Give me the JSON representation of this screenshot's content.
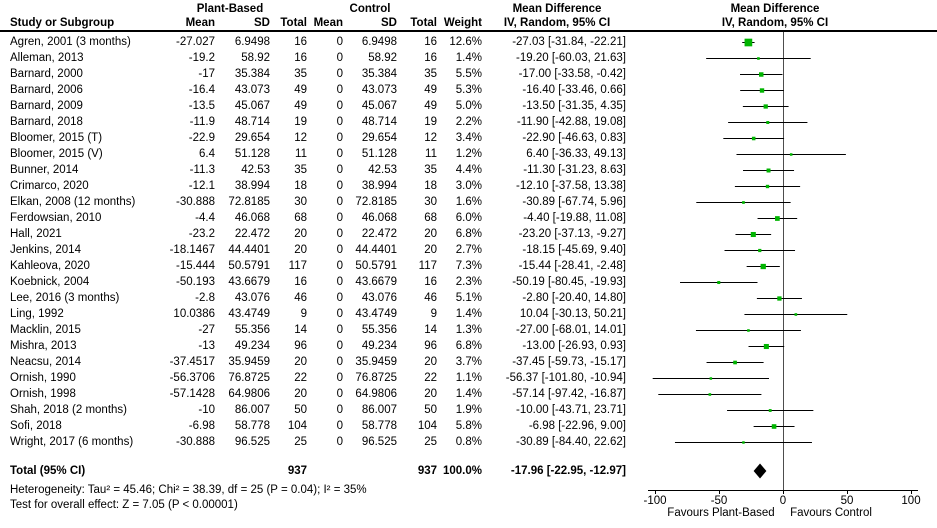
{
  "header": {
    "group_plant": "Plant-Based",
    "group_control": "Control",
    "effect_header_1": "Mean Difference",
    "effect_header_2": "Mean Difference",
    "col_study": "Study or Subgroup",
    "col_mean": "Mean",
    "col_sd": "SD",
    "col_total": "Total",
    "col_mean2": "Mean",
    "col_sd2": "SD",
    "col_total2": "Total",
    "col_weight": "Weight",
    "col_ci_text": "IV, Random, 95% CI",
    "col_ci_plot": "IV, Random, 95% CI"
  },
  "footer": {
    "heterogeneity": "Heterogeneity: Tau² = 45.46; Chi² = 38.39, df = 25 (P = 0.04); I² = 35%",
    "overall_effect": "Test for overall effect: Z = 7.05 (P < 0.00001)"
  },
  "colors": {
    "marker_green": "#00b400",
    "diamond_black": "#000000",
    "ci_line": "#000000",
    "zero_line": "#4d4d4d",
    "axis": "#000000",
    "text": "#000000"
  },
  "chart_data": {
    "type": "forest",
    "effect_measure": "Mean Difference",
    "method": "IV, Random, 95% CI",
    "xlim": [
      -105,
      105
    ],
    "ticks": [
      -100,
      -50,
      0,
      50,
      100
    ],
    "favours_left": "Favours Plant-Based",
    "favours_right": "Favours Control",
    "studies": [
      {
        "study": "Agren, 2001 (3 months)",
        "mean1": "-27.027",
        "sd1": "6.9498",
        "n1": "16",
        "mean2": "0",
        "sd2": "6.9498",
        "n2": "16",
        "weight": "12.6%",
        "w": 12.6,
        "md": -27.03,
        "lo": -31.84,
        "hi": -22.21,
        "ci_text": "-27.03 [-31.84, -22.21]"
      },
      {
        "study": "Alleman, 2013",
        "mean1": "-19.2",
        "sd1": "58.92",
        "n1": "16",
        "mean2": "0",
        "sd2": "58.92",
        "n2": "16",
        "weight": "1.4%",
        "w": 1.4,
        "md": -19.2,
        "lo": -60.03,
        "hi": 21.63,
        "ci_text": "-19.20 [-60.03, 21.63]"
      },
      {
        "study": "Barnard, 2000",
        "mean1": "-17",
        "sd1": "35.384",
        "n1": "35",
        "mean2": "0",
        "sd2": "35.384",
        "n2": "35",
        "weight": "5.5%",
        "w": 5.5,
        "md": -17.0,
        "lo": -33.58,
        "hi": -0.42,
        "ci_text": "-17.00 [-33.58, -0.42]"
      },
      {
        "study": "Barnard, 2006",
        "mean1": "-16.4",
        "sd1": "43.073",
        "n1": "49",
        "mean2": "0",
        "sd2": "43.073",
        "n2": "49",
        "weight": "5.3%",
        "w": 5.3,
        "md": -16.4,
        "lo": -33.46,
        "hi": 0.66,
        "ci_text": "-16.40 [-33.46, 0.66]"
      },
      {
        "study": "Barnard, 2009",
        "mean1": "-13.5",
        "sd1": "45.067",
        "n1": "49",
        "mean2": "0",
        "sd2": "45.067",
        "n2": "49",
        "weight": "5.0%",
        "w": 5.0,
        "md": -13.5,
        "lo": -31.35,
        "hi": 4.35,
        "ci_text": "-13.50 [-31.35, 4.35]"
      },
      {
        "study": "Barnard, 2018",
        "mean1": "-11.9",
        "sd1": "48.714",
        "n1": "19",
        "mean2": "0",
        "sd2": "48.714",
        "n2": "19",
        "weight": "2.2%",
        "w": 2.2,
        "md": -11.9,
        "lo": -42.88,
        "hi": 19.08,
        "ci_text": "-11.90 [-42.88, 19.08]"
      },
      {
        "study": "Bloomer, 2015 (T)",
        "mean1": "-22.9",
        "sd1": "29.654",
        "n1": "12",
        "mean2": "0",
        "sd2": "29.654",
        "n2": "12",
        "weight": "3.4%",
        "w": 3.4,
        "md": -22.9,
        "lo": -46.63,
        "hi": 0.83,
        "ci_text": "-22.90 [-46.63, 0.83]"
      },
      {
        "study": "Bloomer, 2015 (V)",
        "mean1": "6.4",
        "sd1": "51.128",
        "n1": "11",
        "mean2": "0",
        "sd2": "51.128",
        "n2": "11",
        "weight": "1.2%",
        "w": 1.2,
        "md": 6.4,
        "lo": -36.33,
        "hi": 49.13,
        "ci_text": "6.40 [-36.33, 49.13]"
      },
      {
        "study": "Bunner, 2014",
        "mean1": "-11.3",
        "sd1": "42.53",
        "n1": "35",
        "mean2": "0",
        "sd2": "42.53",
        "n2": "35",
        "weight": "4.4%",
        "w": 4.4,
        "md": -11.3,
        "lo": -31.23,
        "hi": 8.63,
        "ci_text": "-11.30 [-31.23, 8.63]"
      },
      {
        "study": "Crimarco, 2020",
        "mean1": "-12.1",
        "sd1": "38.994",
        "n1": "18",
        "mean2": "0",
        "sd2": "38.994",
        "n2": "18",
        "weight": "3.0%",
        "w": 3.0,
        "md": -12.1,
        "lo": -37.58,
        "hi": 13.38,
        "ci_text": "-12.10 [-37.58, 13.38]"
      },
      {
        "study": "Elkan, 2008 (12 months)",
        "mean1": "-30.888",
        "sd1": "72.8185",
        "n1": "30",
        "mean2": "0",
        "sd2": "72.8185",
        "n2": "30",
        "weight": "1.6%",
        "w": 1.6,
        "md": -30.89,
        "lo": -67.74,
        "hi": 5.96,
        "ci_text": "-30.89 [-67.74, 5.96]"
      },
      {
        "study": "Ferdowsian, 2010",
        "mean1": "-4.4",
        "sd1": "46.068",
        "n1": "68",
        "mean2": "0",
        "sd2": "46.068",
        "n2": "68",
        "weight": "6.0%",
        "w": 6.0,
        "md": -4.4,
        "lo": -19.88,
        "hi": 11.08,
        "ci_text": "-4.40 [-19.88, 11.08]"
      },
      {
        "study": "Hall, 2021",
        "mean1": "-23.2",
        "sd1": "22.472",
        "n1": "20",
        "mean2": "0",
        "sd2": "22.472",
        "n2": "20",
        "weight": "6.8%",
        "w": 6.8,
        "md": -23.2,
        "lo": -37.13,
        "hi": -9.27,
        "ci_text": "-23.20 [-37.13, -9.27]"
      },
      {
        "study": "Jenkins, 2014",
        "mean1": "-18.1467",
        "sd1": "44.4401",
        "n1": "20",
        "mean2": "0",
        "sd2": "44.4401",
        "n2": "20",
        "weight": "2.7%",
        "w": 2.7,
        "md": -18.15,
        "lo": -45.69,
        "hi": 9.4,
        "ci_text": "-18.15 [-45.69, 9.40]"
      },
      {
        "study": "Kahleova, 2020",
        "mean1": "-15.444",
        "sd1": "50.5791",
        "n1": "117",
        "mean2": "0",
        "sd2": "50.5791",
        "n2": "117",
        "weight": "7.3%",
        "w": 7.3,
        "md": -15.44,
        "lo": -28.41,
        "hi": -2.48,
        "ci_text": "-15.44 [-28.41, -2.48]"
      },
      {
        "study": "Koebnick, 2004",
        "mean1": "-50.193",
        "sd1": "43.6679",
        "n1": "16",
        "mean2": "0",
        "sd2": "43.6679",
        "n2": "16",
        "weight": "2.3%",
        "w": 2.3,
        "md": -50.19,
        "lo": -80.45,
        "hi": -19.93,
        "ci_text": "-50.19 [-80.45, -19.93]"
      },
      {
        "study": "Lee, 2016 (3 months)",
        "mean1": "-2.8",
        "sd1": "43.076",
        "n1": "46",
        "mean2": "0",
        "sd2": "43.076",
        "n2": "46",
        "weight": "5.1%",
        "w": 5.1,
        "md": -2.8,
        "lo": -20.4,
        "hi": 14.8,
        "ci_text": "-2.80 [-20.40, 14.80]"
      },
      {
        "study": "Ling, 1992",
        "mean1": "10.0386",
        "sd1": "43.4749",
        "n1": "9",
        "mean2": "0",
        "sd2": "43.4749",
        "n2": "9",
        "weight": "1.4%",
        "w": 1.4,
        "md": 10.04,
        "lo": -30.13,
        "hi": 50.21,
        "ci_text": "10.04 [-30.13, 50.21]"
      },
      {
        "study": "Macklin, 2015",
        "mean1": "-27",
        "sd1": "55.356",
        "n1": "14",
        "mean2": "0",
        "sd2": "55.356",
        "n2": "14",
        "weight": "1.3%",
        "w": 1.3,
        "md": -27.0,
        "lo": -68.01,
        "hi": 14.01,
        "ci_text": "-27.00 [-68.01, 14.01]"
      },
      {
        "study": "Mishra, 2013",
        "mean1": "-13",
        "sd1": "49.234",
        "n1": "96",
        "mean2": "0",
        "sd2": "49.234",
        "n2": "96",
        "weight": "6.8%",
        "w": 6.8,
        "md": -13.0,
        "lo": -26.93,
        "hi": 0.93,
        "ci_text": "-13.00 [-26.93, 0.93]"
      },
      {
        "study": "Neacsu, 2014",
        "mean1": "-37.4517",
        "sd1": "35.9459",
        "n1": "20",
        "mean2": "0",
        "sd2": "35.9459",
        "n2": "20",
        "weight": "3.7%",
        "w": 3.7,
        "md": -37.45,
        "lo": -59.73,
        "hi": -15.17,
        "ci_text": "-37.45 [-59.73, -15.17]"
      },
      {
        "study": "Ornish, 1990",
        "mean1": "-56.3706",
        "sd1": "76.8725",
        "n1": "22",
        "mean2": "0",
        "sd2": "76.8725",
        "n2": "22",
        "weight": "1.1%",
        "w": 1.1,
        "md": -56.37,
        "lo": -101.8,
        "hi": -10.94,
        "ci_text": "-56.37 [-101.80, -10.94]"
      },
      {
        "study": "Ornish, 1998",
        "mean1": "-57.1428",
        "sd1": "64.9806",
        "n1": "20",
        "mean2": "0",
        "sd2": "64.9806",
        "n2": "20",
        "weight": "1.4%",
        "w": 1.4,
        "md": -57.14,
        "lo": -97.42,
        "hi": -16.87,
        "ci_text": "-57.14 [-97.42, -16.87]"
      },
      {
        "study": "Shah, 2018 (2 months)",
        "mean1": "-10",
        "sd1": "86.007",
        "n1": "50",
        "mean2": "0",
        "sd2": "86.007",
        "n2": "50",
        "weight": "1.9%",
        "w": 1.9,
        "md": -10.0,
        "lo": -43.71,
        "hi": 23.71,
        "ci_text": "-10.00 [-43.71, 23.71]"
      },
      {
        "study": "Sofi, 2018",
        "mean1": "-6.98",
        "sd1": "58.778",
        "n1": "104",
        "mean2": "0",
        "sd2": "58.778",
        "n2": "104",
        "weight": "5.8%",
        "w": 5.8,
        "md": -6.98,
        "lo": -22.96,
        "hi": 9.0,
        "ci_text": "-6.98 [-22.96, 9.00]"
      },
      {
        "study": "Wright, 2017 (6 months)",
        "mean1": "-30.888",
        "sd1": "96.525",
        "n1": "25",
        "mean2": "0",
        "sd2": "96.525",
        "n2": "25",
        "weight": "0.8%",
        "w": 0.8,
        "md": -30.89,
        "lo": -84.4,
        "hi": 22.62,
        "ci_text": "-30.89 [-84.40, 22.62]"
      }
    ],
    "total": {
      "label": "Total (95% CI)",
      "n1": "937",
      "n2": "937",
      "weight": "100.0%",
      "md": -17.96,
      "lo": -22.95,
      "hi": -12.97,
      "ci_text": "-17.96 [-22.95, -12.97]"
    }
  }
}
